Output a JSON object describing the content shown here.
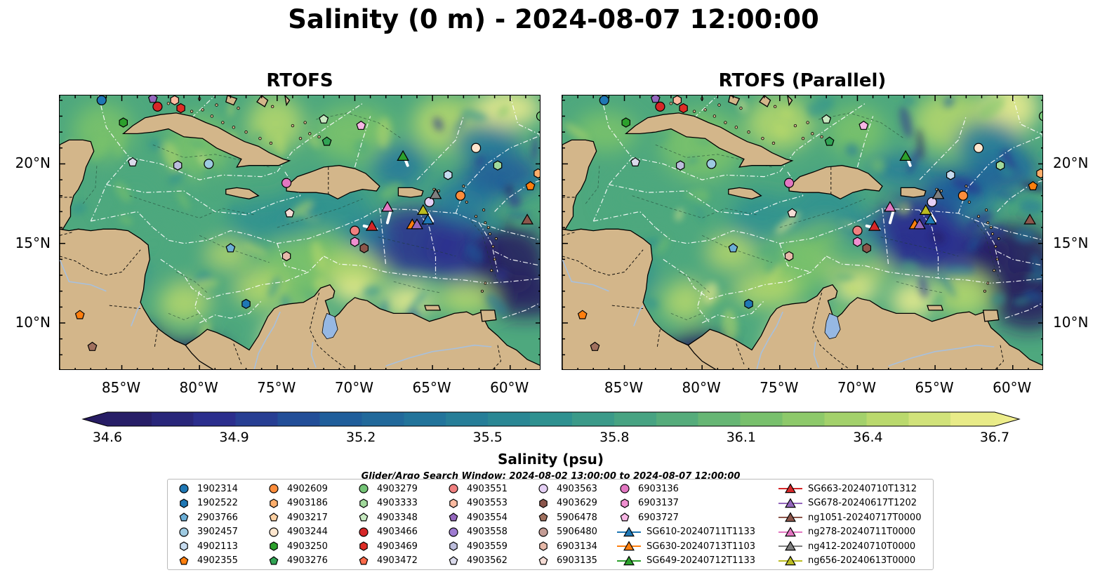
{
  "title": "Salinity (0 m) - 2024-08-07 12:00:00",
  "panels": [
    {
      "title": "RTOFS"
    },
    {
      "title": "RTOFS (Parallel)"
    }
  ],
  "axes": {
    "lon_ticks": [
      "85°W",
      "80°W",
      "75°W",
      "70°W",
      "65°W",
      "60°W"
    ],
    "lat_ticks": [
      "20°N",
      "15°N",
      "10°N"
    ],
    "lon_range": [
      -89,
      -58
    ],
    "lat_range": [
      7,
      24.3
    ]
  },
  "colorbar": {
    "label": "Salinity (psu)",
    "ticks": [
      "34.6",
      "34.9",
      "35.2",
      "35.5",
      "35.8",
      "36.1",
      "36.4",
      "36.7"
    ],
    "range": [
      34.6,
      36.7
    ],
    "colormap": [
      "#261a5e",
      "#2b2f8f",
      "#1f5b9b",
      "#23789b",
      "#2f9190",
      "#4ea87e",
      "#7cc36a",
      "#b7d86b",
      "#f4f08f"
    ]
  },
  "search_window": "Glider/Argo Search Window: 2024-08-02 13:00:00 to 2024-08-07 12:00:00",
  "colors": {
    "land": "#d3b68a",
    "lake": "#96b8e3",
    "river": "#a8c0dc"
  },
  "legend": {
    "columns": [
      [
        {
          "label": "1902314",
          "shape": "circle",
          "color": "#1f77b4"
        },
        {
          "label": "1902522",
          "shape": "hexagon",
          "color": "#1f77b4"
        },
        {
          "label": "2903766",
          "shape": "pentagon",
          "color": "#6baed6"
        },
        {
          "label": "3902457",
          "shape": "circle",
          "color": "#9ecae1"
        },
        {
          "label": "4902113",
          "shape": "hexagon",
          "color": "#c6dbef"
        },
        {
          "label": "4902355",
          "shape": "pentagon",
          "color": "#ff7f0e"
        }
      ],
      [
        {
          "label": "4902609",
          "shape": "circle",
          "color": "#fd8d3c"
        },
        {
          "label": "4903186",
          "shape": "hexagon",
          "color": "#fdae6b"
        },
        {
          "label": "4903217",
          "shape": "pentagon",
          "color": "#fdd0a2"
        },
        {
          "label": "4903244",
          "shape": "circle",
          "color": "#fee6ce"
        },
        {
          "label": "4903250",
          "shape": "hexagon",
          "color": "#2ca02c"
        },
        {
          "label": "4903276",
          "shape": "pentagon",
          "color": "#31a354"
        }
      ],
      [
        {
          "label": "4903279",
          "shape": "circle",
          "color": "#74c476"
        },
        {
          "label": "4903333",
          "shape": "hexagon",
          "color": "#a1d99b"
        },
        {
          "label": "4903348",
          "shape": "pentagon",
          "color": "#c7e9c0"
        },
        {
          "label": "4903466",
          "shape": "circle",
          "color": "#d62728"
        },
        {
          "label": "4903469",
          "shape": "hexagon",
          "color": "#de2d26"
        },
        {
          "label": "4903472",
          "shape": "pentagon",
          "color": "#fb6a4a"
        }
      ],
      [
        {
          "label": "4903551",
          "shape": "circle",
          "color": "#f08080"
        },
        {
          "label": "4903553",
          "shape": "hexagon",
          "color": "#fcbba1"
        },
        {
          "label": "4903554",
          "shape": "pentagon",
          "color": "#9467bd"
        },
        {
          "label": "4903558",
          "shape": "circle",
          "color": "#9e7bd1"
        },
        {
          "label": "4903559",
          "shape": "hexagon",
          "color": "#bcbddc"
        },
        {
          "label": "4903562",
          "shape": "pentagon",
          "color": "#dadaeb"
        }
      ],
      [
        {
          "label": "4903563",
          "shape": "circle",
          "color": "#e5d0f5"
        },
        {
          "label": "4903629",
          "shape": "hexagon",
          "color": "#8c564b"
        },
        {
          "label": "5906478",
          "shape": "pentagon",
          "color": "#a0705e"
        },
        {
          "label": "5906480",
          "shape": "circle",
          "color": "#c49c94"
        },
        {
          "label": "6903134",
          "shape": "hexagon",
          "color": "#e7b9a9"
        },
        {
          "label": "6903135",
          "shape": "pentagon",
          "color": "#f5dcd5"
        }
      ],
      [
        {
          "label": "6903136",
          "shape": "circle",
          "color": "#e377c2"
        },
        {
          "label": "6903137",
          "shape": "hexagon",
          "color": "#f08fd0"
        },
        {
          "label": "6903727",
          "shape": "pentagon",
          "color": "#f7b6e4"
        },
        {
          "label": "SG610-20240711T1133",
          "shape": "triangle-line",
          "color": "#1f77b4"
        },
        {
          "label": "SG630-20240713T1103",
          "shape": "triangle-line",
          "color": "#ff7f0e"
        },
        {
          "label": "SG649-20240712T1133",
          "shape": "triangle-line",
          "color": "#2ca02c"
        }
      ],
      [
        {
          "label": "SG663-20240710T1312",
          "shape": "triangle-line",
          "color": "#d62728"
        },
        {
          "label": "SG678-20240617T1202",
          "shape": "triangle-line",
          "color": "#9467bd"
        },
        {
          "label": "ng1051-20240717T0000",
          "shape": "triangle-line",
          "color": "#8c564b"
        },
        {
          "label": "ng278-20240711T0000",
          "shape": "triangle-line",
          "color": "#e377c2"
        },
        {
          "label": "ng412-20240710T0000",
          "shape": "triangle-line",
          "color": "#7f7f7f"
        },
        {
          "label": "ng656-20240613T0000",
          "shape": "triangle-line",
          "color": "#bcbd22"
        }
      ]
    ]
  },
  "observations": [
    {
      "id": "1902314",
      "lon": -86.3,
      "lat": 24.0
    },
    {
      "id": "4903562",
      "lon": -84.3,
      "lat": 20.1
    },
    {
      "id": "4903554",
      "lon": -83.0,
      "lat": 24.1
    },
    {
      "id": "4903466",
      "lon": -82.7,
      "lat": 23.6
    },
    {
      "id": "4903553",
      "lon": -81.6,
      "lat": 24.0
    },
    {
      "id": "4903469",
      "lon": -81.2,
      "lat": 23.5
    },
    {
      "id": "4903250",
      "lon": -84.9,
      "lat": 22.6
    },
    {
      "id": "4903559",
      "lon": -81.4,
      "lat": 19.9
    },
    {
      "id": "3902457",
      "lon": -79.4,
      "lat": 20.0
    },
    {
      "id": "4903348",
      "lon": -72.0,
      "lat": 22.8
    },
    {
      "id": "4903276",
      "lon": -71.8,
      "lat": 21.4
    },
    {
      "id": "6903727",
      "lon": -69.6,
      "lat": 22.4
    },
    {
      "id": "6903136",
      "lon": -74.4,
      "lat": 18.8
    },
    {
      "id": "6903135",
      "lon": -74.2,
      "lat": 16.9
    },
    {
      "id": "2903766",
      "lon": -78.0,
      "lat": 14.7
    },
    {
      "id": "6903134",
      "lon": -74.4,
      "lat": 14.2
    },
    {
      "id": "1902522",
      "lon": -77.0,
      "lat": 11.2
    },
    {
      "id": "4902355",
      "lon": -87.7,
      "lat": 10.5
    },
    {
      "id": "5906478",
      "lon": -86.9,
      "lat": 8.5
    },
    {
      "id": "6903137",
      "lon": -70.0,
      "lat": 15.1
    },
    {
      "id": "4903551",
      "lon": -70.0,
      "lat": 15.8
    },
    {
      "id": "4903629",
      "lon": -69.4,
      "lat": 14.7
    },
    {
      "id": "4903244",
      "lon": -62.2,
      "lat": 21.0
    },
    {
      "id": "4903333",
      "lon": -60.8,
      "lat": 19.9
    },
    {
      "id": "4902113",
      "lon": -64.0,
      "lat": 19.3
    },
    {
      "id": "4903186",
      "lon": -58.2,
      "lat": 19.4
    },
    {
      "id": "4902609",
      "lon": -63.2,
      "lat": 18.0
    },
    {
      "id": "4903279",
      "lon": -58.0,
      "lat": 23.0
    },
    {
      "id": "4902355",
      "lon": -58.7,
      "lat": 18.6
    },
    {
      "id": "4903563",
      "lon": -65.2,
      "lat": 17.6
    }
  ],
  "gliders": [
    {
      "id": "SG649-20240712T1133",
      "lon": -66.9,
      "lat": 20.5
    },
    {
      "id": "ng278-20240711T0000",
      "lon": -67.9,
      "lat": 17.3
    },
    {
      "id": "ng656-20240613T0000",
      "lon": -65.6,
      "lat": 17.1
    },
    {
      "id": "SG663-20240710T1312",
      "lon": -68.9,
      "lat": 16.1
    },
    {
      "id": "SG630-20240713T1103",
      "lon": -66.3,
      "lat": 16.2
    },
    {
      "id": "SG678-20240617T1202",
      "lon": -66.0,
      "lat": 16.2
    },
    {
      "id": "SG610-20240711T1133",
      "lon": -65.3,
      "lat": 16.5
    },
    {
      "id": "ng412-20240710T0000",
      "lon": -64.8,
      "lat": 18.1
    },
    {
      "id": "ng1051-20240717T0000",
      "lon": -58.9,
      "lat": 16.5
    }
  ]
}
